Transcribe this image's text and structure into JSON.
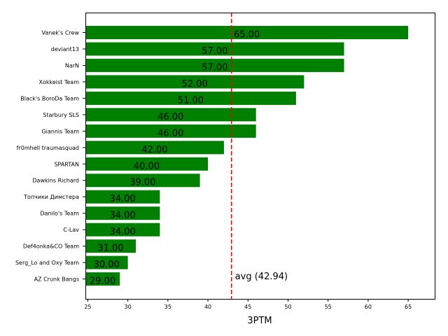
{
  "chart_data": {
    "type": "bar",
    "orientation": "horizontal",
    "title": "",
    "xlabel": "3PTM",
    "ylabel": "",
    "xlim": [
      24.7,
      68.4
    ],
    "xticks": [
      25,
      30,
      35,
      40,
      45,
      50,
      55,
      60,
      65
    ],
    "grid": false,
    "bar_color": "#008000",
    "categories": [
      "Vanek's Crew",
      "deviant13",
      "NarN",
      "Xokkeist Team",
      "Black's BoroDa Team",
      "Starbury SLS",
      "Giannis Team",
      "fr0mhell traumasquad",
      "SPARTAN",
      "Dawkins Richard",
      "Топчики Димстера",
      "Danilo's Team",
      "C-Lav",
      "Def4onka&CO Team",
      "Serg_Lo and Oxy Team",
      "AZ Crunk Bangs"
    ],
    "values": [
      65,
      57,
      57,
      52,
      51,
      46,
      46,
      42,
      40,
      39,
      34,
      34,
      34,
      31,
      30,
      29
    ],
    "value_labels": [
      "65.00",
      "57.00",
      "57.00",
      "52.00",
      "51.00",
      "46.00",
      "46.00",
      "42.00",
      "40.00",
      "39.00",
      "34.00",
      "34.00",
      "34.00",
      "31.00",
      "30.00",
      "29.00"
    ],
    "reference_line": {
      "value": 42.94,
      "label": "avg (42.94)",
      "color": "#ff0000",
      "style": "dashed"
    }
  }
}
